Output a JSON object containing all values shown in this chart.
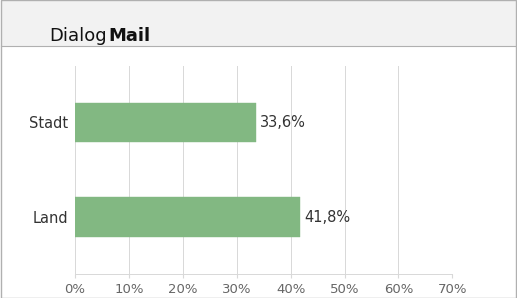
{
  "categories": [
    "Stadt",
    "Land"
  ],
  "values": [
    33.6,
    41.8
  ],
  "labels": [
    "33,6%",
    "41,8%"
  ],
  "bar_color": "#82b882",
  "bar_edgecolor": "#82b882",
  "background_color": "#ffffff",
  "plot_bg_color": "#ffffff",
  "header_bg_color": "#f2f2f2",
  "xlim": [
    0,
    70
  ],
  "xticks": [
    0,
    10,
    20,
    30,
    40,
    50,
    60,
    70
  ],
  "xtick_labels": [
    "0%",
    "10%",
    "20%",
    "30%",
    "40%",
    "50%",
    "60%",
    "70%"
  ],
  "grid_color": "#d8d8d8",
  "bar_height": 0.42,
  "label_fontsize": 10.5,
  "tick_fontsize": 9.5,
  "ytick_fontsize": 10.5,
  "logo_text_dialog": "Dialog",
  "logo_text_mail": "Mail",
  "logo_fontsize": 13,
  "outer_border_color": "#b0b0b0",
  "text_color": "#333333",
  "tick_color": "#666666"
}
